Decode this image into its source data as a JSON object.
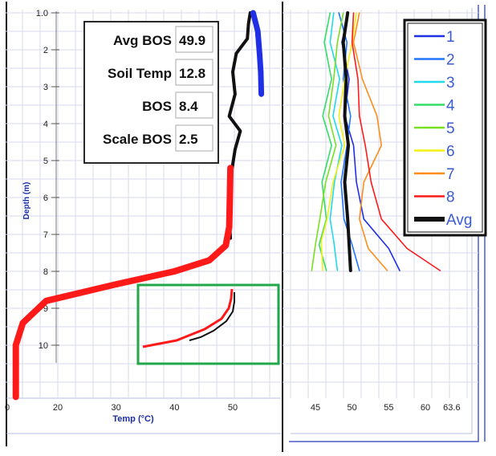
{
  "readouts": [
    {
      "label": "Avg BOS",
      "value": "49.9"
    },
    {
      "label": "Soil Temp",
      "value": "12.8"
    },
    {
      "label": "BOS",
      "value": "8.4"
    },
    {
      "label": "Scale BOS",
      "value": "2.5"
    }
  ],
  "colors": {
    "black_line": "#111111",
    "blue_line": "#1f2fe6",
    "red_line": "#ff1a1a",
    "highlight_box": "#22a84a",
    "axis_label_blue": "#1a2ea8",
    "frame_blue": "#4a5bc8",
    "grid": "#d7d9ee"
  },
  "chart_data": [
    {
      "type": "line",
      "title": "",
      "xlabel": "Temp (°C)",
      "ylabel": "Depth (m)",
      "xlim": [
        10,
        60
      ],
      "ylim": [
        11.4,
        1.0
      ],
      "y_inverted": true,
      "x_ticks": [
        20,
        30,
        40,
        50
      ],
      "y_ticks": [
        1,
        2,
        3,
        4,
        5,
        6,
        7,
        8,
        9,
        10
      ],
      "y_tick_labels": [
        "1.0",
        "2",
        "3",
        "4",
        "5",
        "6",
        "7",
        "8",
        "9",
        "10"
      ],
      "x_tick_left_edge_label": "0",
      "grid": true,
      "series": [
        {
          "key": "avg",
          "color": "#111111",
          "points": [
            [
              53,
              1.0
            ],
            [
              52.7,
              1.3
            ],
            [
              52.5,
              1.7
            ],
            [
              50.6,
              2.1
            ],
            [
              50,
              2.6
            ],
            [
              50.4,
              3.2
            ],
            [
              49.4,
              3.8
            ],
            [
              51.3,
              4.2
            ],
            [
              50.4,
              4.7
            ],
            [
              49.6,
              5.5
            ],
            [
              49.3,
              6.3
            ],
            [
              49.6,
              7.1
            ]
          ]
        },
        {
          "key": "blue",
          "color": "#1f2fe6",
          "points": [
            [
              53.5,
              1.0
            ],
            [
              54.3,
              1.5
            ],
            [
              54.6,
              2.1
            ],
            [
              54.8,
              2.6
            ],
            [
              54.9,
              3.2
            ]
          ]
        },
        {
          "key": "red",
          "color": "#ff1a1a",
          "points": [
            [
              49.6,
              5.2
            ],
            [
              49.5,
              6.0
            ],
            [
              49.4,
              6.8
            ],
            [
              48.8,
              7.3
            ],
            [
              46,
              7.7
            ],
            [
              40,
              8.0
            ],
            [
              30,
              8.35
            ],
            [
              18,
              8.8
            ],
            [
              14,
              9.4
            ],
            [
              12.8,
              10.0
            ],
            [
              12.8,
              11.4
            ]
          ]
        }
      ]
    },
    {
      "type": "line",
      "title": "",
      "xlabel": "",
      "ylabel": "",
      "xlim": [
        38,
        63.6
      ],
      "ylim": [
        11.4,
        1.0
      ],
      "y_inverted": true,
      "x_tick_labels": [
        "45",
        "50",
        "55",
        "60",
        "63.6"
      ],
      "x_tick_values": [
        45,
        50,
        55,
        60,
        63.6
      ],
      "grid": true,
      "legend_placement": "top-right",
      "legend": [
        "1",
        "2",
        "3",
        "4",
        "5",
        "6",
        "7",
        "8",
        "Avg"
      ],
      "series": [
        {
          "name": "1",
          "color": "#1f2fe6",
          "points": [
            [
              49.5,
              1.0
            ],
            [
              48.6,
              1.8
            ],
            [
              49.6,
              2.8
            ],
            [
              49.0,
              3.8
            ],
            [
              50.2,
              4.6
            ],
            [
              50.6,
              5.6
            ],
            [
              51.6,
              6.6
            ],
            [
              55.0,
              7.4
            ],
            [
              56.5,
              8.0
            ]
          ]
        },
        {
          "name": "2",
          "color": "#2176ff",
          "points": [
            [
              48.2,
              1.0
            ],
            [
              49.3,
              1.8
            ],
            [
              48.8,
              2.8
            ],
            [
              49.8,
              3.8
            ],
            [
              49.3,
              4.6
            ],
            [
              48.5,
              5.6
            ],
            [
              48.9,
              6.6
            ],
            [
              50.0,
              7.3
            ],
            [
              51.0,
              8.0
            ]
          ]
        },
        {
          "name": "3",
          "color": "#20d9ec",
          "points": [
            [
              47.5,
              1.0
            ],
            [
              47.0,
              1.8
            ],
            [
              48.3,
              2.8
            ],
            [
              47.4,
              3.8
            ],
            [
              48.6,
              4.6
            ],
            [
              47.6,
              5.6
            ],
            [
              47.0,
              6.6
            ],
            [
              47.5,
              7.2
            ],
            [
              48.0,
              8.0
            ]
          ]
        },
        {
          "name": "4",
          "color": "#33dd66",
          "points": [
            [
              47.0,
              1.0
            ],
            [
              46.2,
              1.8
            ],
            [
              47.2,
              2.8
            ],
            [
              46.0,
              3.8
            ],
            [
              47.2,
              4.6
            ],
            [
              45.9,
              5.6
            ],
            [
              46.5,
              6.6
            ],
            [
              45.5,
              7.3
            ],
            [
              46.5,
              8.0
            ]
          ]
        },
        {
          "name": "5",
          "color": "#77e020",
          "points": [
            [
              48.8,
              1.0
            ],
            [
              48.0,
              1.8
            ],
            [
              47.5,
              2.8
            ],
            [
              46.8,
              3.8
            ],
            [
              47.8,
              4.6
            ],
            [
              46.4,
              5.6
            ],
            [
              45.6,
              6.6
            ],
            [
              45.0,
              7.3
            ],
            [
              44.5,
              8.0
            ]
          ]
        },
        {
          "name": "6",
          "color": "#f5f014",
          "points": [
            [
              50.6,
              1.0
            ],
            [
              50.0,
              1.8
            ],
            [
              49.0,
              2.8
            ],
            [
              48.2,
              3.8
            ],
            [
              49.0,
              4.6
            ],
            [
              47.4,
              5.6
            ],
            [
              46.6,
              6.6
            ],
            [
              45.8,
              7.2
            ],
            [
              46.0,
              8.0
            ]
          ]
        },
        {
          "name": "7",
          "color": "#ff8c1a",
          "points": [
            [
              51.0,
              1.0
            ],
            [
              50.2,
              1.8
            ],
            [
              51.4,
              2.8
            ],
            [
              53.4,
              3.8
            ],
            [
              54.0,
              4.6
            ],
            [
              51.6,
              5.6
            ],
            [
              51.0,
              6.6
            ],
            [
              52.2,
              7.4
            ],
            [
              54.8,
              8.0
            ]
          ]
        },
        {
          "name": "8",
          "color": "#ff1a1a",
          "points": [
            [
              50.2,
              1.0
            ],
            [
              50.0,
              1.8
            ],
            [
              50.8,
              2.8
            ],
            [
              51.0,
              3.8
            ],
            [
              51.8,
              4.6
            ],
            [
              52.6,
              5.6
            ],
            [
              54.0,
              6.6
            ],
            [
              57.5,
              7.4
            ],
            [
              62.0,
              8.0
            ]
          ]
        },
        {
          "name": "Avg",
          "color": "#111111",
          "points": [
            [
              49.4,
              1.0
            ],
            [
              48.8,
              1.8
            ],
            [
              49.2,
              2.8
            ],
            [
              49.0,
              3.8
            ],
            [
              49.5,
              4.6
            ],
            [
              49.0,
              5.6
            ],
            [
              49.4,
              6.6
            ],
            [
              49.6,
              7.3
            ],
            [
              49.8,
              8.0
            ]
          ]
        }
      ]
    }
  ]
}
